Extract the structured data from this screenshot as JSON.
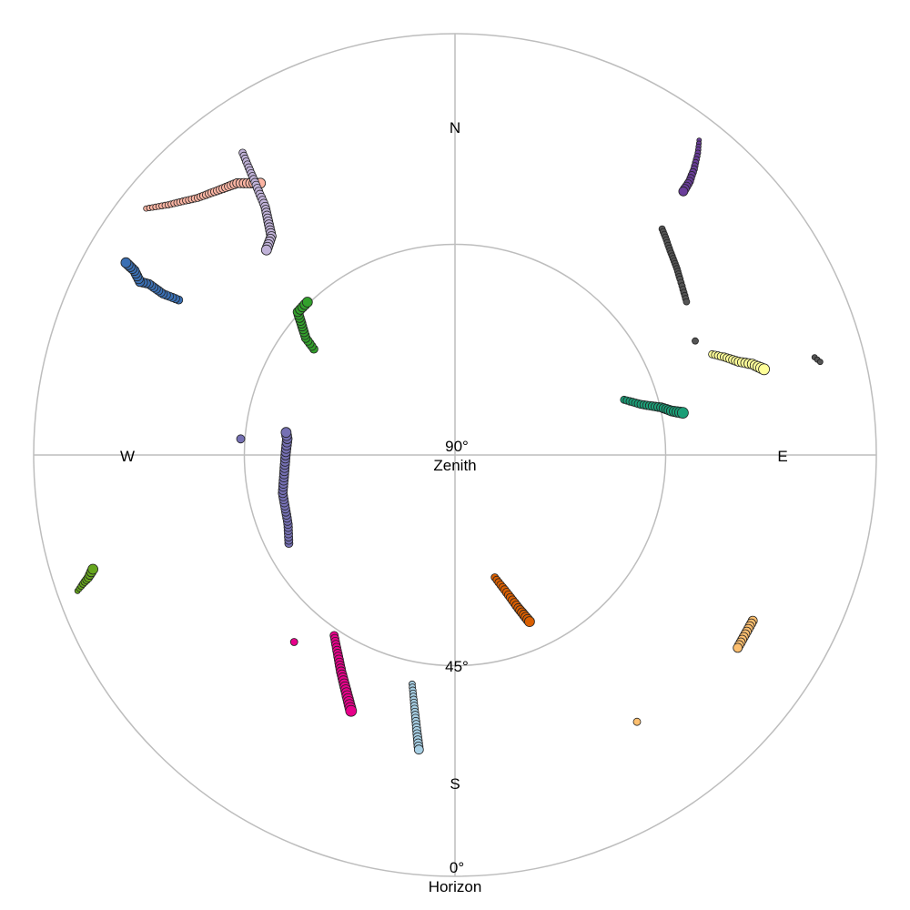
{
  "chart_data": {
    "type": "scatter",
    "projection": "polar sky plot (azimuth clockwise from north, elevation 90 at center to 0 at edge)",
    "grid": true,
    "legend": "none",
    "compass": {
      "north": "N",
      "east": "E",
      "south": "S",
      "west": "W"
    },
    "elevation_rings": [
      {
        "value": 90,
        "label": "90°",
        "sublabel": "Zenith"
      },
      {
        "value": 45,
        "label": "45°",
        "sublabel": ""
      },
      {
        "value": 0,
        "label": "0°",
        "sublabel": "Horizon"
      }
    ],
    "series": [
      {
        "color": "#6a3d9a",
        "size": [
          2.5,
          5
        ],
        "points": [
          [
            37.8,
            4.9
          ],
          [
            38.8,
            7.2
          ],
          [
            39.9,
            10.4
          ],
          [
            40.6,
            13.0
          ],
          [
            40.9,
            15.5
          ]
        ]
      },
      {
        "color": "#555555",
        "size": [
          3.5,
          3.5
        ],
        "points": [
          [
            42.5,
            24.5
          ],
          [
            44.0,
            25.3
          ],
          [
            46.0,
            26.4
          ],
          [
            48.0,
            27.3
          ],
          [
            50.0,
            28.1
          ],
          [
            52.0,
            29.0
          ],
          [
            54.0,
            29.8
          ],
          [
            56.5,
            30.7
          ]
        ]
      },
      {
        "color": "#555555",
        "size": [
          3.5,
          3.5
        ],
        "points": [
          [
            64.6,
            33.2
          ]
        ]
      },
      {
        "color": "#555555",
        "size": [
          3,
          3
        ],
        "points": [
          [
            74.8,
            10.4
          ],
          [
            75.7,
            9.5
          ]
        ]
      },
      {
        "color": "#ffff99",
        "size": [
          4,
          6
        ],
        "points": [
          [
            68.6,
            31.0
          ],
          [
            70.0,
            28.8
          ],
          [
            71.8,
            26.2
          ],
          [
            73.0,
            23.6
          ],
          [
            74.5,
            21.5
          ]
        ]
      },
      {
        "color": "#1b9e77",
        "size": [
          4,
          6
        ],
        "points": [
          [
            71.9,
            52.0
          ],
          [
            74.8,
            48.8
          ],
          [
            77.0,
            44.8
          ],
          [
            78.5,
            42.8
          ],
          [
            79.5,
            40.5
          ]
        ]
      },
      {
        "color": "#d95f02",
        "size": [
          4,
          5.5
        ],
        "points": [
          [
            162.0,
            62.5
          ],
          [
            159.8,
            59.3
          ],
          [
            157.5,
            54.6
          ],
          [
            155.9,
            51.0
          ]
        ]
      },
      {
        "color": "#fdbf6f",
        "size": [
          5,
          5
        ],
        "points": [
          [
            119.1,
            17.2
          ],
          [
            124.3,
            16.9
          ]
        ]
      },
      {
        "color": "#fdbf6f",
        "size": [
          4,
          4
        ],
        "points": [
          [
            145.7,
            21.0
          ]
        ]
      },
      {
        "color": "#a6cee3",
        "size": [
          3.5,
          5
        ],
        "points": [
          [
            190.6,
            40.2
          ],
          [
            188.7,
            33.8
          ],
          [
            187.0,
            26.6
          ]
        ]
      },
      {
        "color": "#e7008a",
        "size": [
          4.5,
          6
        ],
        "points": [
          [
            213.8,
            43.6
          ],
          [
            207.7,
            37.7
          ],
          [
            202.1,
            31.0
          ]
        ]
      },
      {
        "color": "#e7008a",
        "size": [
          4,
          4
        ],
        "points": [
          [
            220.7,
            37.3
          ]
        ]
      },
      {
        "color": "#7570b3",
        "size": [
          4.5,
          5.5
        ],
        "points": [
          [
            242.0,
            49.8
          ],
          [
            247.5,
            51.4
          ],
          [
            257.5,
            52.3
          ],
          [
            269.9,
            53.8
          ],
          [
            275.5,
            54.0
          ],
          [
            277.6,
            53.6
          ]
        ]
      },
      {
        "color": "#7570b3",
        "size": [
          4.5,
          4.5
        ],
        "points": [
          [
            274.3,
            44.1
          ]
        ]
      },
      {
        "color": "#66a61e",
        "size": [
          3,
          5.5
        ],
        "points": [
          [
            250.2,
            4.3
          ],
          [
            250.9,
            5.9
          ],
          [
            251.5,
            7.4
          ],
          [
            252.5,
            8.9
          ]
        ]
      },
      {
        "color": "#33a02c",
        "size": [
          4.5,
          5.5
        ],
        "points": [
          [
            306.9,
            52.3
          ],
          [
            308.1,
            49.5
          ],
          [
            312.3,
            44.6
          ],
          [
            316.0,
            44.6
          ]
        ]
      },
      {
        "color": "#3a6fb3",
        "size": [
          4.5,
          5.5
        ],
        "points": [
          [
            299.3,
            22.3
          ],
          [
            298.9,
            18.8
          ],
          [
            299.2,
            15.1
          ],
          [
            298.8,
            13.2
          ],
          [
            299.9,
            11.0
          ],
          [
            300.3,
            8.6
          ]
        ]
      },
      {
        "color": "#fbb4a3",
        "size": [
          3,
          5.5
        ],
        "points": [
          [
            308.6,
            5.6
          ],
          [
            311.1,
            8.7
          ],
          [
            315.0,
            12.3
          ],
          [
            318.5,
            14.3
          ],
          [
            321.3,
            15.6
          ],
          [
            324.4,
            18.6
          ]
        ]
      },
      {
        "color": "#c0b2d8",
        "size": [
          4,
          5.5
        ],
        "points": [
          [
            324.9,
            11.1
          ],
          [
            323.6,
            18.4
          ],
          [
            322.6,
            23.2
          ],
          [
            320.0,
            29.0
          ],
          [
            317.4,
            30.5
          ]
        ]
      }
    ]
  }
}
